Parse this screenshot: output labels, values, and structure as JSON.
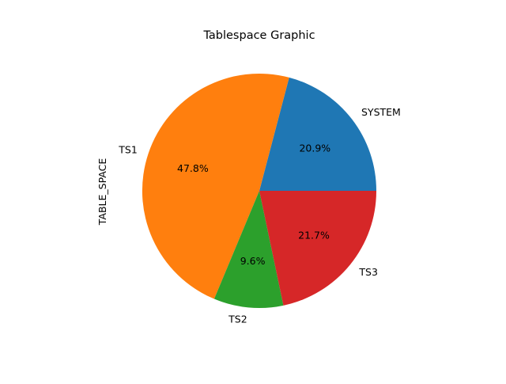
{
  "chart_data": {
    "type": "pie",
    "title": "Tablespace Graphic",
    "ylabel": "TABLE_SPACE",
    "start_angle_deg": 0,
    "direction": "counterclockwise",
    "slices": [
      {
        "label": "SYSTEM",
        "value": 20.9,
        "pct_label": "20.9%",
        "color": "#1f77b4"
      },
      {
        "label": "TS1",
        "value": 47.8,
        "pct_label": "47.8%",
        "color": "#ff7f0e"
      },
      {
        "label": "TS2",
        "value": 9.6,
        "pct_label": "9.6%",
        "color": "#2ca02c"
      },
      {
        "label": "TS3",
        "value": 21.7,
        "pct_label": "21.7%",
        "color": "#d62728"
      }
    ]
  }
}
